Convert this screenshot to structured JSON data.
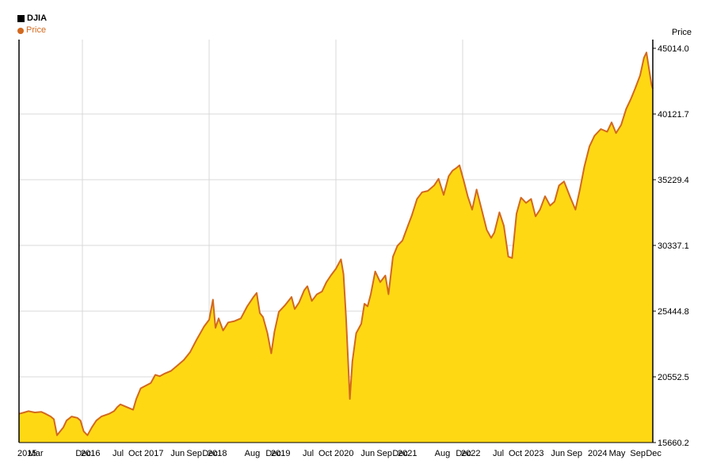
{
  "legend": {
    "title": "DJIA",
    "series_label": "Price",
    "series_color": "#d2691e"
  },
  "colors": {
    "area_fill": "#ffd814",
    "line": "#d2691e",
    "grid": "#d9d9d9",
    "axis": "#000000"
  },
  "chart_data": {
    "type": "area",
    "title": "DJIA",
    "ylabel": "Price",
    "xlim": [
      2015.0,
      2025.0
    ],
    "ylim": [
      15660.2,
      45014.0
    ],
    "yticks": [
      {
        "value": 45014.0,
        "label": "45014.0"
      },
      {
        "value": 40121.7,
        "label": "40121.7"
      },
      {
        "value": 35229.4,
        "label": "35229.4"
      },
      {
        "value": 30337.1,
        "label": "30337.1"
      },
      {
        "value": 25444.8,
        "label": "25444.8"
      },
      {
        "value": 20552.5,
        "label": "20552.5"
      },
      {
        "value": 15660.2,
        "label": "15660.2"
      }
    ],
    "xticks": [
      {
        "t": 2015.0,
        "label": "2015"
      },
      {
        "t": 2015.17,
        "label": "Mar"
      },
      {
        "t": 2015.917,
        "label": "Dec"
      },
      {
        "t": 2016.0,
        "label": "2016"
      },
      {
        "t": 2016.5,
        "label": "Jul"
      },
      {
        "t": 2016.75,
        "label": "Oct"
      },
      {
        "t": 2017.0,
        "label": "2017"
      },
      {
        "t": 2017.417,
        "label": "Jun"
      },
      {
        "t": 2017.667,
        "label": "Sep"
      },
      {
        "t": 2017.917,
        "label": "Dec"
      },
      {
        "t": 2018.0,
        "label": "2018"
      },
      {
        "t": 2018.583,
        "label": "Aug"
      },
      {
        "t": 2018.917,
        "label": "Dec"
      },
      {
        "t": 2019.0,
        "label": "2019"
      },
      {
        "t": 2019.5,
        "label": "Jul"
      },
      {
        "t": 2019.75,
        "label": "Oct"
      },
      {
        "t": 2020.0,
        "label": "2020"
      },
      {
        "t": 2020.417,
        "label": "Jun"
      },
      {
        "t": 2020.667,
        "label": "Sep"
      },
      {
        "t": 2020.917,
        "label": "Dec"
      },
      {
        "t": 2021.0,
        "label": "2021"
      },
      {
        "t": 2021.583,
        "label": "Aug"
      },
      {
        "t": 2021.917,
        "label": "Dec"
      },
      {
        "t": 2022.0,
        "label": "2022"
      },
      {
        "t": 2022.5,
        "label": "Jul"
      },
      {
        "t": 2022.75,
        "label": "Oct"
      },
      {
        "t": 2023.0,
        "label": "2023"
      },
      {
        "t": 2023.417,
        "label": "Jun"
      },
      {
        "t": 2023.667,
        "label": "Sep"
      },
      {
        "t": 2024.0,
        "label": "2024"
      },
      {
        "t": 2024.333,
        "label": "May"
      },
      {
        "t": 2024.667,
        "label": "Sep"
      },
      {
        "t": 2024.917,
        "label": "Dec"
      }
    ],
    "vgrid": [
      2016.0,
      2018.0,
      2020.0,
      2022.0
    ],
    "hgrid": [
      40121.7,
      35229.4,
      30337.1,
      25444.8,
      20552.5
    ],
    "legend_position": "top-left",
    "series": [
      {
        "name": "Price",
        "points": [
          [
            2015.0,
            17800
          ],
          [
            2015.08,
            17900
          ],
          [
            2015.15,
            18000
          ],
          [
            2015.25,
            17900
          ],
          [
            2015.35,
            17950
          ],
          [
            2015.42,
            17800
          ],
          [
            2015.5,
            17600
          ],
          [
            2015.55,
            17400
          ],
          [
            2015.6,
            16200
          ],
          [
            2015.65,
            16500
          ],
          [
            2015.7,
            16800
          ],
          [
            2015.75,
            17300
          ],
          [
            2015.83,
            17600
          ],
          [
            2015.92,
            17500
          ],
          [
            2015.97,
            17300
          ],
          [
            2016.02,
            16500
          ],
          [
            2016.08,
            16200
          ],
          [
            2016.15,
            16800
          ],
          [
            2016.22,
            17300
          ],
          [
            2016.3,
            17600
          ],
          [
            2016.42,
            17800
          ],
          [
            2016.5,
            18000
          ],
          [
            2016.55,
            18300
          ],
          [
            2016.6,
            18500
          ],
          [
            2016.7,
            18300
          ],
          [
            2016.8,
            18100
          ],
          [
            2016.85,
            18900
          ],
          [
            2016.92,
            19700
          ],
          [
            2017.0,
            19900
          ],
          [
            2017.08,
            20100
          ],
          [
            2017.15,
            20700
          ],
          [
            2017.22,
            20600
          ],
          [
            2017.3,
            20800
          ],
          [
            2017.4,
            21000
          ],
          [
            2017.5,
            21400
          ],
          [
            2017.6,
            21800
          ],
          [
            2017.7,
            22400
          ],
          [
            2017.8,
            23300
          ],
          [
            2017.92,
            24300
          ],
          [
            2018.0,
            24800
          ],
          [
            2018.06,
            26300
          ],
          [
            2018.1,
            24200
          ],
          [
            2018.15,
            24900
          ],
          [
            2018.22,
            24000
          ],
          [
            2018.3,
            24600
          ],
          [
            2018.4,
            24700
          ],
          [
            2018.5,
            24900
          ],
          [
            2018.6,
            25800
          ],
          [
            2018.7,
            26500
          ],
          [
            2018.75,
            26800
          ],
          [
            2018.8,
            25300
          ],
          [
            2018.85,
            25000
          ],
          [
            2018.92,
            23800
          ],
          [
            2018.98,
            22300
          ],
          [
            2019.03,
            23900
          ],
          [
            2019.1,
            25400
          ],
          [
            2019.2,
            25900
          ],
          [
            2019.3,
            26500
          ],
          [
            2019.35,
            25600
          ],
          [
            2019.42,
            26100
          ],
          [
            2019.5,
            27000
          ],
          [
            2019.55,
            27300
          ],
          [
            2019.62,
            26200
          ],
          [
            2019.7,
            26700
          ],
          [
            2019.78,
            26900
          ],
          [
            2019.85,
            27600
          ],
          [
            2019.92,
            28100
          ],
          [
            2020.0,
            28600
          ],
          [
            2020.08,
            29300
          ],
          [
            2020.12,
            28200
          ],
          [
            2020.16,
            25000
          ],
          [
            2020.2,
            21000
          ],
          [
            2020.22,
            18900
          ],
          [
            2020.26,
            21700
          ],
          [
            2020.32,
            23800
          ],
          [
            2020.4,
            24500
          ],
          [
            2020.45,
            26000
          ],
          [
            2020.5,
            25800
          ],
          [
            2020.55,
            26700
          ],
          [
            2020.62,
            28400
          ],
          [
            2020.7,
            27600
          ],
          [
            2020.78,
            28100
          ],
          [
            2020.83,
            26700
          ],
          [
            2020.9,
            29500
          ],
          [
            2020.97,
            30300
          ],
          [
            2021.05,
            30700
          ],
          [
            2021.12,
            31600
          ],
          [
            2021.2,
            32600
          ],
          [
            2021.28,
            33800
          ],
          [
            2021.36,
            34300
          ],
          [
            2021.45,
            34400
          ],
          [
            2021.55,
            34800
          ],
          [
            2021.62,
            35300
          ],
          [
            2021.7,
            34100
          ],
          [
            2021.78,
            35500
          ],
          [
            2021.84,
            35900
          ],
          [
            2021.9,
            36100
          ],
          [
            2021.95,
            36300
          ],
          [
            2022.02,
            35100
          ],
          [
            2022.08,
            34000
          ],
          [
            2022.15,
            33000
          ],
          [
            2022.22,
            34500
          ],
          [
            2022.3,
            33000
          ],
          [
            2022.38,
            31500
          ],
          [
            2022.45,
            30900
          ],
          [
            2022.5,
            31300
          ],
          [
            2022.58,
            32800
          ],
          [
            2022.65,
            31800
          ],
          [
            2022.72,
            29500
          ],
          [
            2022.78,
            29400
          ],
          [
            2022.85,
            32700
          ],
          [
            2022.92,
            33900
          ],
          [
            2023.0,
            33500
          ],
          [
            2023.08,
            33800
          ],
          [
            2023.15,
            32500
          ],
          [
            2023.22,
            33000
          ],
          [
            2023.3,
            34000
          ],
          [
            2023.38,
            33300
          ],
          [
            2023.45,
            33600
          ],
          [
            2023.52,
            34800
          ],
          [
            2023.6,
            35100
          ],
          [
            2023.7,
            33900
          ],
          [
            2023.78,
            33000
          ],
          [
            2023.85,
            34500
          ],
          [
            2023.92,
            36200
          ],
          [
            2024.0,
            37700
          ],
          [
            2024.08,
            38500
          ],
          [
            2024.18,
            39000
          ],
          [
            2024.28,
            38800
          ],
          [
            2024.35,
            39500
          ],
          [
            2024.42,
            38700
          ],
          [
            2024.5,
            39300
          ],
          [
            2024.58,
            40500
          ],
          [
            2024.65,
            41200
          ],
          [
            2024.72,
            42000
          ],
          [
            2024.8,
            43000
          ],
          [
            2024.86,
            44300
          ],
          [
            2024.9,
            44700
          ],
          [
            2024.94,
            43500
          ],
          [
            2024.98,
            42300
          ],
          [
            2025.0,
            42000
          ]
        ]
      }
    ]
  }
}
